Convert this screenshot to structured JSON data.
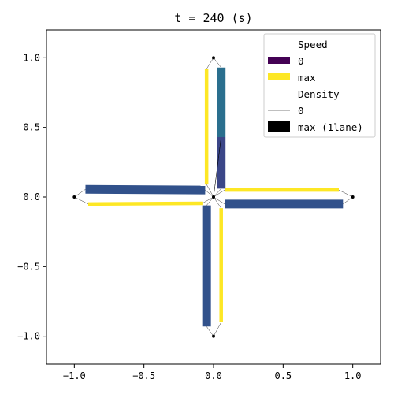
{
  "chart_data": {
    "type": "network",
    "title": "t =      240 (s)",
    "xlim": [
      -1.2,
      1.2
    ],
    "ylim": [
      -1.2,
      1.2
    ],
    "x_ticks": [
      -1.0,
      -0.5,
      0.0,
      0.5,
      1.0
    ],
    "y_ticks": [
      -1.0,
      -0.5,
      0.0,
      0.5,
      1.0
    ],
    "x_tick_labels": [
      "−1.0",
      "−0.5",
      "0.0",
      "0.5",
      "1.0"
    ],
    "y_tick_labels": [
      "−1.0",
      "−0.5",
      "0.0",
      "0.5",
      "1.0"
    ],
    "grid": false,
    "colors": {
      "speed_zero": "#440154",
      "speed_max": "#fde725",
      "slow": "#31518b",
      "medium": "#2a6f8e"
    },
    "nodes": [
      {
        "x": 0.0,
        "y": 0.0
      },
      {
        "x": 0.0,
        "y": 1.0
      },
      {
        "x": 0.0,
        "y": -1.0
      },
      {
        "x": -1.0,
        "y": 0.0
      },
      {
        "x": 1.0,
        "y": 0.0
      }
    ],
    "links": [
      {
        "x1": -0.92,
        "y1": 0.055,
        "x2": -0.06,
        "y2": 0.05,
        "color": "#31518b",
        "density": 0.9
      },
      {
        "x1": -0.9,
        "y1": -0.05,
        "x2": -0.08,
        "y2": -0.045,
        "color": "#fde725",
        "density": 0.25
      },
      {
        "x1": 0.08,
        "y1": 0.05,
        "x2": 0.9,
        "y2": 0.05,
        "color": "#fde725",
        "density": 0.25
      },
      {
        "x1": 0.08,
        "y1": -0.05,
        "x2": 0.93,
        "y2": -0.05,
        "color": "#31518b",
        "density": 0.9
      },
      {
        "x1": -0.05,
        "y1": 0.09,
        "x2": -0.05,
        "y2": 0.92,
        "color": "#fde725",
        "density": 0.25
      },
      {
        "x1": 0.055,
        "y1": 0.43,
        "x2": 0.055,
        "y2": 0.93,
        "color": "#2a6f8e",
        "density": 0.9
      },
      {
        "x1": 0.055,
        "y1": 0.06,
        "x2": 0.055,
        "y2": 0.43,
        "color": "#3b4688",
        "density": 0.9
      },
      {
        "x1": -0.05,
        "y1": -0.93,
        "x2": -0.05,
        "y2": -0.06,
        "color": "#31518b",
        "density": 0.9
      },
      {
        "x1": 0.055,
        "y1": -0.9,
        "x2": 0.055,
        "y2": -0.08,
        "color": "#fde725",
        "density": 0.25
      }
    ],
    "legend": {
      "position": "top-right",
      "speed_title": "Speed",
      "speed_zero_label": "0",
      "speed_max_label": "max",
      "density_title": "Density",
      "density_zero_label": "0",
      "density_max_label": "max (1lane)"
    }
  }
}
